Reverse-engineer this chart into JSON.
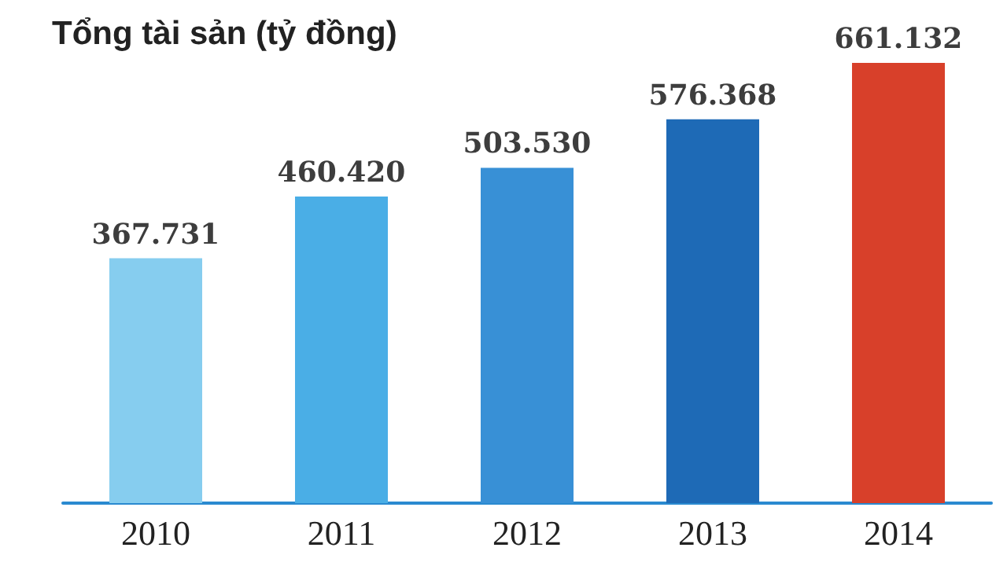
{
  "chart_data": {
    "type": "bar",
    "title": "Tổng tài sản (tỷ đồng)",
    "categories": [
      "2010",
      "2011",
      "2012",
      "2013",
      "2014"
    ],
    "values": [
      367731,
      460420,
      503530,
      576368,
      661132
    ],
    "value_labels": [
      "367.731",
      "460.420",
      "503.530",
      "576.368",
      "661.132"
    ],
    "colors": [
      "#86cdef",
      "#4aaee6",
      "#3890d6",
      "#1e6ab6",
      "#d8402a"
    ]
  }
}
